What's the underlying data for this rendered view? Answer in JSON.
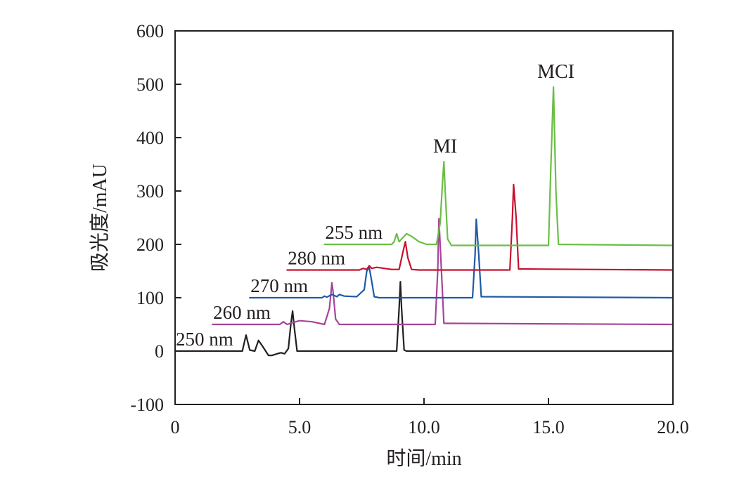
{
  "chart_data": {
    "type": "line",
    "xlabel": "时间/min",
    "ylabel": "吸光度/mAU",
    "xlim": [
      0,
      20
    ],
    "ylim": [
      -100,
      600
    ],
    "x_ticks": [
      0,
      5,
      10,
      15,
      20
    ],
    "x_tick_labels": [
      "0",
      "5.0",
      "10.0",
      "15.0",
      "20.0"
    ],
    "y_ticks": [
      600,
      500,
      400,
      300,
      200,
      100,
      0,
      -100
    ],
    "y_tick_labels": [
      "600",
      "500",
      "400",
      "300",
      "200",
      "100",
      "0",
      "-100"
    ],
    "grid": false,
    "legend": "none",
    "series": [
      {
        "name": "250 nm",
        "color": "#231f20",
        "x": [
          0,
          2.7,
          2.85,
          3.0,
          3.2,
          3.35,
          3.5,
          3.75,
          3.9,
          4.1,
          4.25,
          4.4,
          4.55,
          4.65,
          4.72,
          4.8,
          4.9,
          5.0,
          8.9,
          9.0,
          9.05,
          9.1,
          9.2,
          9.3,
          20
        ],
        "y": [
          0,
          0,
          30,
          2,
          0,
          20,
          10,
          -8,
          -8,
          -5,
          -3,
          -5,
          5,
          50,
          75,
          40,
          0,
          0,
          0,
          80,
          130,
          80,
          2,
          0,
          0
        ]
      },
      {
        "name": "260 nm",
        "color": "#a6449a",
        "x": [
          1.5,
          4.2,
          4.35,
          4.5,
          4.7,
          5.0,
          5.5,
          6.0,
          6.2,
          6.3,
          6.35,
          6.45,
          6.6,
          10.45,
          10.55,
          10.6,
          10.7,
          10.8,
          20
        ],
        "y": [
          50,
          50,
          55,
          50,
          53,
          57,
          55,
          50,
          80,
          128,
          110,
          60,
          50,
          50,
          150,
          248,
          150,
          52,
          50
        ]
      },
      {
        "name": "270 nm",
        "color": "#1f5aa6",
        "x": [
          3,
          5.9,
          6.0,
          6.1,
          6.3,
          6.5,
          6.6,
          6.8,
          7.3,
          7.6,
          7.7,
          7.8,
          7.9,
          8.0,
          8.2,
          11.95,
          12.05,
          12.1,
          12.2,
          12.3,
          20
        ],
        "y": [
          100,
          100,
          103,
          101,
          106,
          102,
          106,
          103,
          102,
          115,
          150,
          157,
          130,
          102,
          100,
          100,
          180,
          247,
          180,
          102,
          100
        ]
      },
      {
        "name": "280 nm",
        "color": "#c8102e",
        "x": [
          4.5,
          7.4,
          7.55,
          7.7,
          7.8,
          7.9,
          8.1,
          8.4,
          8.7,
          9.0,
          9.15,
          9.25,
          9.35,
          9.5,
          9.8,
          13.45,
          13.55,
          13.6,
          13.7,
          13.8,
          20
        ],
        "y": [
          152,
          152,
          155,
          153,
          160,
          155,
          157,
          155,
          153,
          153,
          185,
          205,
          175,
          153,
          152,
          152,
          250,
          312,
          250,
          154,
          152
        ]
      },
      {
        "name": "255 nm",
        "color": "#6abf45",
        "x": [
          6,
          8.7,
          8.8,
          8.9,
          9.0,
          9.1,
          9.3,
          9.5,
          9.8,
          10.1,
          10.5,
          10.65,
          10.75,
          10.8,
          10.85,
          10.95,
          11.1,
          15.0,
          15.1,
          15.2,
          15.3,
          15.4,
          20
        ],
        "y": [
          200,
          200,
          205,
          220,
          205,
          210,
          220,
          215,
          205,
          200,
          200,
          240,
          320,
          355,
          300,
          210,
          198,
          198,
          350,
          495,
          300,
          200,
          198
        ]
      }
    ],
    "series_labels": [
      "250 nm",
      "260 nm",
      "270 nm",
      "280 nm",
      "255 nm"
    ],
    "annotations": [
      {
        "text": "MI",
        "x": 10.85,
        "y": 372
      },
      {
        "text": "MCI",
        "x": 15.3,
        "y": 512
      }
    ]
  }
}
